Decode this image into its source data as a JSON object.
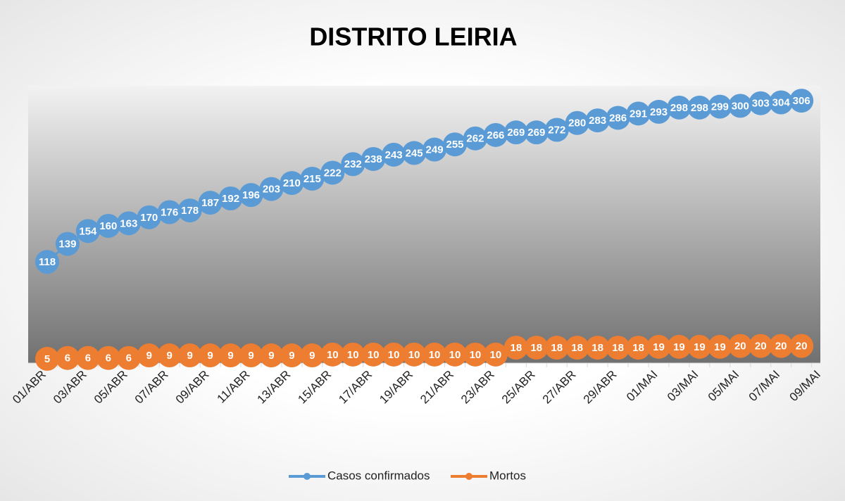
{
  "chart_data": {
    "type": "line",
    "title": "DISTRITO LEIRIA",
    "categories": [
      "01/ABR",
      null,
      "03/ABR",
      null,
      "05/ABR",
      null,
      "07/ABR",
      null,
      "09/ABR",
      null,
      "11/ABR",
      null,
      "13/ABR",
      null,
      "15/ABR",
      null,
      "17/ABR",
      null,
      "19/ABR",
      null,
      "21/ABR",
      null,
      "23/ABR",
      null,
      "25/ABR",
      null,
      "27/ABR",
      null,
      "29/ABR",
      null,
      "01/MAI",
      null,
      "03/MAI",
      null,
      "05/MAI",
      null,
      "07/MAI",
      null,
      "09/MAI"
    ],
    "series": [
      {
        "name": "Casos confirmados",
        "color": "#5b9bd5",
        "values": [
          118,
          139,
          154,
          160,
          163,
          170,
          176,
          178,
          187,
          192,
          196,
          203,
          210,
          215,
          222,
          232,
          238,
          243,
          245,
          249,
          255,
          262,
          266,
          269,
          269,
          272,
          280,
          283,
          286,
          291,
          293,
          298,
          298,
          299,
          300,
          303,
          304,
          306,
          null
        ]
      },
      {
        "name": "Mortos",
        "color": "#ed7d31",
        "values": [
          5,
          6,
          6,
          6,
          6,
          9,
          9,
          9,
          9,
          9,
          9,
          9,
          9,
          9,
          10,
          10,
          10,
          10,
          10,
          10,
          10,
          10,
          10,
          18,
          18,
          18,
          18,
          18,
          18,
          18,
          19,
          19,
          19,
          19,
          20,
          20,
          20,
          20,
          null
        ]
      }
    ],
    "ylim": [
      0,
      320
    ],
    "data_labels": true
  }
}
